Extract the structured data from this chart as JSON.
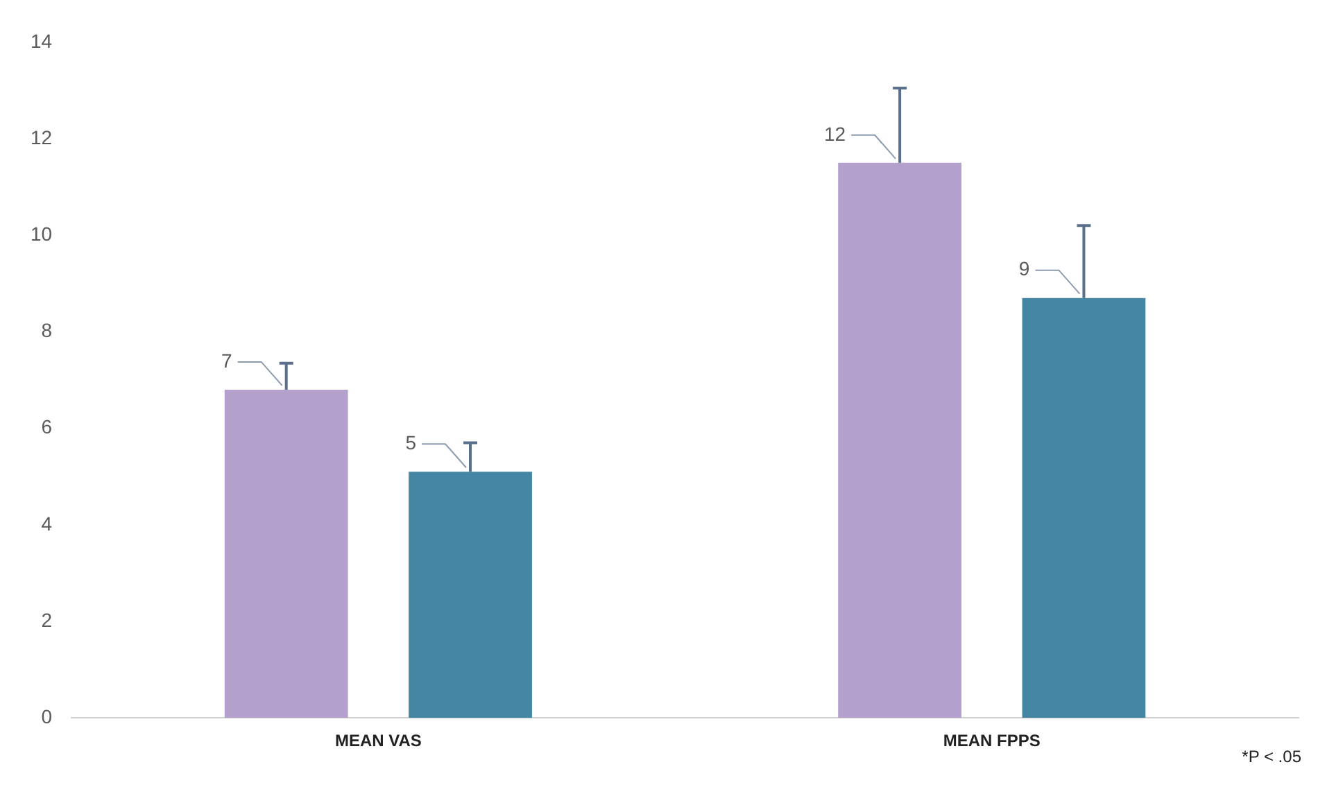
{
  "chart_data": {
    "type": "bar",
    "categories": [
      "MEAN VAS",
      "MEAN FPPS"
    ],
    "series": [
      {
        "color": "#b3a0cd",
        "values": [
          6.8,
          11.5
        ],
        "errors": [
          [
            6.8,
            7.35
          ],
          [
            11.5,
            13.05
          ]
        ],
        "value_labels": [
          "7",
          "12"
        ]
      },
      {
        "color": "#4586a5",
        "values": [
          5.1,
          8.7
        ],
        "errors": [
          [
            5.1,
            5.7
          ],
          [
            8.7,
            10.2
          ]
        ],
        "value_labels": [
          "5",
          "9"
        ]
      }
    ],
    "ylim": [
      0,
      14
    ],
    "yticks": [
      0,
      2,
      4,
      6,
      8,
      10,
      12,
      14
    ],
    "grid": false,
    "legend": false,
    "annotations": [
      "*P < .05"
    ]
  }
}
